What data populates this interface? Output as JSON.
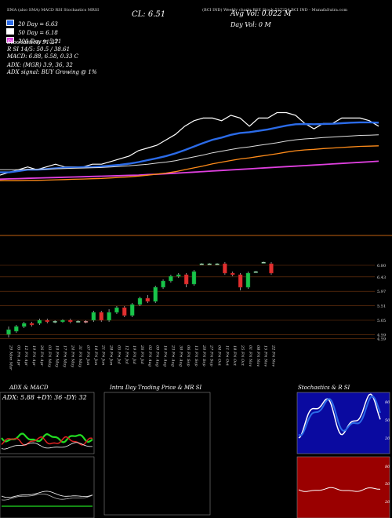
{
  "header": {
    "line1": "(BCI IND) Weekly charts BSE Stock 537254 BCI IND - MunafaSutra.com",
    "ema_label": "EMA (also SMA) MACD RSI Stochastics MRSI",
    "cl": "CL: 6.51",
    "avg_vol": "Avg Vol: 0.022  M",
    "day_vol": "Day Vol: 0  M",
    "ma20": "20 Day = 6.63",
    "ma50": "50 Day = 6.18",
    "ma200": "200 Day = 5.21",
    "stoch": "Stochastics: 91.27",
    "rsi": "R                SI 14/5: 50.5 / 38.61",
    "macd": "MACD: 6.88, 6.58, 0.33 C",
    "adx": "ADX:                     (MGR) 3.9, 36, 32",
    "adx_signal": "ADX  signal:                          BUY Growing @ 1%"
  },
  "colors": {
    "ma20": "#2b6be8",
    "ma50": "#ffffff",
    "ma200": "#e040e0",
    "orange": "#ff8c1a",
    "up": "#19c44a",
    "down": "#e03030"
  },
  "chart_data": [
    {
      "type": "line",
      "name": "price-ema-panel",
      "x_index": [
        0,
        1,
        2,
        3,
        4,
        5,
        6,
        7,
        8,
        9,
        10,
        11,
        12,
        13,
        14,
        15,
        16,
        17,
        18,
        19,
        20,
        21,
        22,
        23,
        24,
        25,
        26,
        27,
        28,
        29,
        30,
        31,
        32,
        33,
        34,
        35,
        36,
        37,
        38,
        39,
        40,
        41
      ],
      "series": [
        {
          "name": "close",
          "values": [
            4.7,
            4.8,
            4.9,
            5.0,
            4.9,
            5.0,
            5.1,
            5.0,
            5.0,
            5.0,
            5.1,
            5.1,
            5.2,
            5.3,
            5.4,
            5.6,
            5.7,
            5.8,
            6.0,
            6.2,
            6.5,
            6.7,
            6.8,
            6.8,
            6.7,
            6.9,
            6.8,
            6.5,
            6.8,
            6.8,
            7.0,
            7.0,
            6.9,
            6.6,
            6.4,
            6.6,
            6.6,
            6.8,
            6.8,
            6.8,
            6.7,
            6.5
          ]
        },
        {
          "name": "ema20",
          "values": [
            4.8,
            4.8,
            4.85,
            4.9,
            4.9,
            4.92,
            4.95,
            4.97,
            4.98,
            4.99,
            5.0,
            5.02,
            5.05,
            5.08,
            5.12,
            5.18,
            5.25,
            5.32,
            5.4,
            5.5,
            5.62,
            5.75,
            5.88,
            6.0,
            6.08,
            6.18,
            6.25,
            6.28,
            6.33,
            6.38,
            6.45,
            6.52,
            6.57,
            6.58,
            6.57,
            6.58,
            6.59,
            6.61,
            6.63,
            6.64,
            6.64,
            6.63
          ]
        },
        {
          "name": "ema50",
          "values": [
            4.9,
            4.9,
            4.9,
            4.91,
            4.91,
            4.92,
            4.93,
            4.94,
            4.95,
            4.96,
            4.97,
            4.98,
            5.0,
            5.02,
            5.04,
            5.07,
            5.1,
            5.14,
            5.18,
            5.23,
            5.3,
            5.37,
            5.44,
            5.52,
            5.58,
            5.64,
            5.7,
            5.74,
            5.79,
            5.84,
            5.89,
            5.95,
            6.0,
            6.03,
            6.05,
            6.08,
            6.1,
            6.12,
            6.14,
            6.16,
            6.17,
            6.18
          ]
        },
        {
          "name": "ema200",
          "values": [
            4.55,
            4.56,
            4.57,
            4.58,
            4.59,
            4.6,
            4.61,
            4.62,
            4.63,
            4.64,
            4.65,
            4.66,
            4.67,
            4.68,
            4.69,
            4.7,
            4.72,
            4.73,
            4.75,
            4.77,
            4.79,
            4.81,
            4.83,
            4.85,
            4.87,
            4.89,
            4.91,
            4.93,
            4.95,
            4.97,
            4.99,
            5.01,
            5.03,
            5.05,
            5.07,
            5.09,
            5.11,
            5.13,
            5.15,
            5.17,
            5.19,
            5.21
          ]
        }
      ]
    },
    {
      "type": "bar",
      "name": "weekly-candles",
      "price_ticks": [
        "6.80",
        "6.43",
        "5.97",
        "5.51",
        "5.05",
        "4.59",
        "4.59"
      ],
      "ylim": [
        4.45,
        7.0
      ],
      "categories": [
        "29 Mon Mar",
        "05 Fri Apr",
        "12 Fri Apr",
        "19 Fri Apr",
        "26 Fri Apr",
        "03 Fri May",
        "10 Fri May",
        "17 Fri May",
        "24 Fri May",
        "31 Fri May",
        "07 Fri Jun",
        "14 Fri Jun",
        "21 Fri Jun",
        "28 Fri Jun",
        "05 Fri Jul",
        "12 Fri Jul",
        "19 Fri Jul",
        "26 Fri Jul",
        "02 Fri Aug",
        "09 Fri Aug",
        "16 Fri Aug",
        "23 Fri Aug",
        "30 Fri Aug",
        "06 Fri Sep",
        "13 Fri Sep",
        "20 Fri Sep",
        "27 Fri Sep",
        "04 Fri Oct",
        "11 Fri Oct",
        "18 Fri Oct",
        "25 Fri Oct",
        "01 Fri Nov",
        "08 Fri Nov",
        "15 Fri Nov",
        "22 Fri Nov"
      ],
      "candles": [
        {
          "o": 4.6,
          "c": 4.75,
          "h": 4.85,
          "l": 4.5
        },
        {
          "o": 4.7,
          "c": 4.85,
          "h": 4.9,
          "l": 4.65
        },
        {
          "o": 4.85,
          "c": 4.95,
          "h": 5.0,
          "l": 4.8
        },
        {
          "o": 4.95,
          "c": 4.9,
          "h": 5.0,
          "l": 4.85
        },
        {
          "o": 4.95,
          "c": 5.05,
          "h": 5.1,
          "l": 4.9
        },
        {
          "o": 5.05,
          "c": 5.0,
          "h": 5.1,
          "l": 4.95
        },
        {
          "o": 5.0,
          "c": 5.02,
          "h": 5.05,
          "l": 4.95
        },
        {
          "o": 5.0,
          "c": 5.05,
          "h": 5.08,
          "l": 4.97
        },
        {
          "o": 5.05,
          "c": 5.0,
          "h": 5.1,
          "l": 4.95
        },
        {
          "o": 5.0,
          "c": 5.02,
          "h": 5.05,
          "l": 4.98
        },
        {
          "o": 5.02,
          "c": 5.0,
          "h": 5.05,
          "l": 4.95
        },
        {
          "o": 5.05,
          "c": 5.3,
          "h": 5.35,
          "l": 5.0
        },
        {
          "o": 5.3,
          "c": 5.05,
          "h": 5.35,
          "l": 5.0
        },
        {
          "o": 5.05,
          "c": 5.3,
          "h": 5.4,
          "l": 5.0
        },
        {
          "o": 5.3,
          "c": 5.45,
          "h": 5.5,
          "l": 5.25
        },
        {
          "o": 5.45,
          "c": 5.2,
          "h": 5.5,
          "l": 5.15
        },
        {
          "o": 5.2,
          "c": 5.55,
          "h": 5.6,
          "l": 5.15
        },
        {
          "o": 5.55,
          "c": 5.75,
          "h": 5.8,
          "l": 5.5
        },
        {
          "o": 5.75,
          "c": 5.65,
          "h": 5.85,
          "l": 5.6
        },
        {
          "o": 5.65,
          "c": 6.1,
          "h": 6.15,
          "l": 5.6
        },
        {
          "o": 6.1,
          "c": 6.3,
          "h": 6.35,
          "l": 6.05
        },
        {
          "o": 6.3,
          "c": 6.45,
          "h": 6.5,
          "l": 6.25
        },
        {
          "o": 6.45,
          "c": 6.5,
          "h": 6.55,
          "l": 6.4
        },
        {
          "o": 6.5,
          "c": 6.2,
          "h": 6.55,
          "l": 6.1
        },
        {
          "o": 6.2,
          "c": 6.6,
          "h": 6.65,
          "l": 6.15
        },
        {
          "o": 6.85,
          "c": 6.85,
          "h": 6.87,
          "l": 6.83
        },
        {
          "o": 6.85,
          "c": 6.85,
          "h": 6.87,
          "l": 6.83
        },
        {
          "o": 6.85,
          "c": 6.85,
          "h": 6.87,
          "l": 6.83
        },
        {
          "o": 6.85,
          "c": 6.55,
          "h": 6.9,
          "l": 6.5
        },
        {
          "o": 6.55,
          "c": 6.5,
          "h": 6.6,
          "l": 6.45
        },
        {
          "o": 6.5,
          "c": 6.1,
          "h": 6.55,
          "l": 6.0
        },
        {
          "o": 6.1,
          "c": 6.55,
          "h": 6.6,
          "l": 6.05
        },
        {
          "o": 6.6,
          "c": 6.6,
          "h": 6.62,
          "l": 6.58
        },
        {
          "o": 6.9,
          "c": 6.9,
          "h": 6.92,
          "l": 6.88
        },
        {
          "o": 6.85,
          "c": 6.55,
          "h": 6.9,
          "l": 6.5
        }
      ]
    }
  ],
  "panels": {
    "adx_macd": {
      "title": "ADX  & MACD",
      "adx_line": "ADX: 5.88  +DY: 36  -DY: 32"
    },
    "intraday": {
      "title": "Intra Day Trading Price  & MR                SI"
    },
    "stoch": {
      "title": "Stochastics & R                SI",
      "ticks": [
        "80",
        "50",
        "20"
      ],
      "rsi_ticks": [
        "80",
        "50",
        "20"
      ]
    }
  }
}
